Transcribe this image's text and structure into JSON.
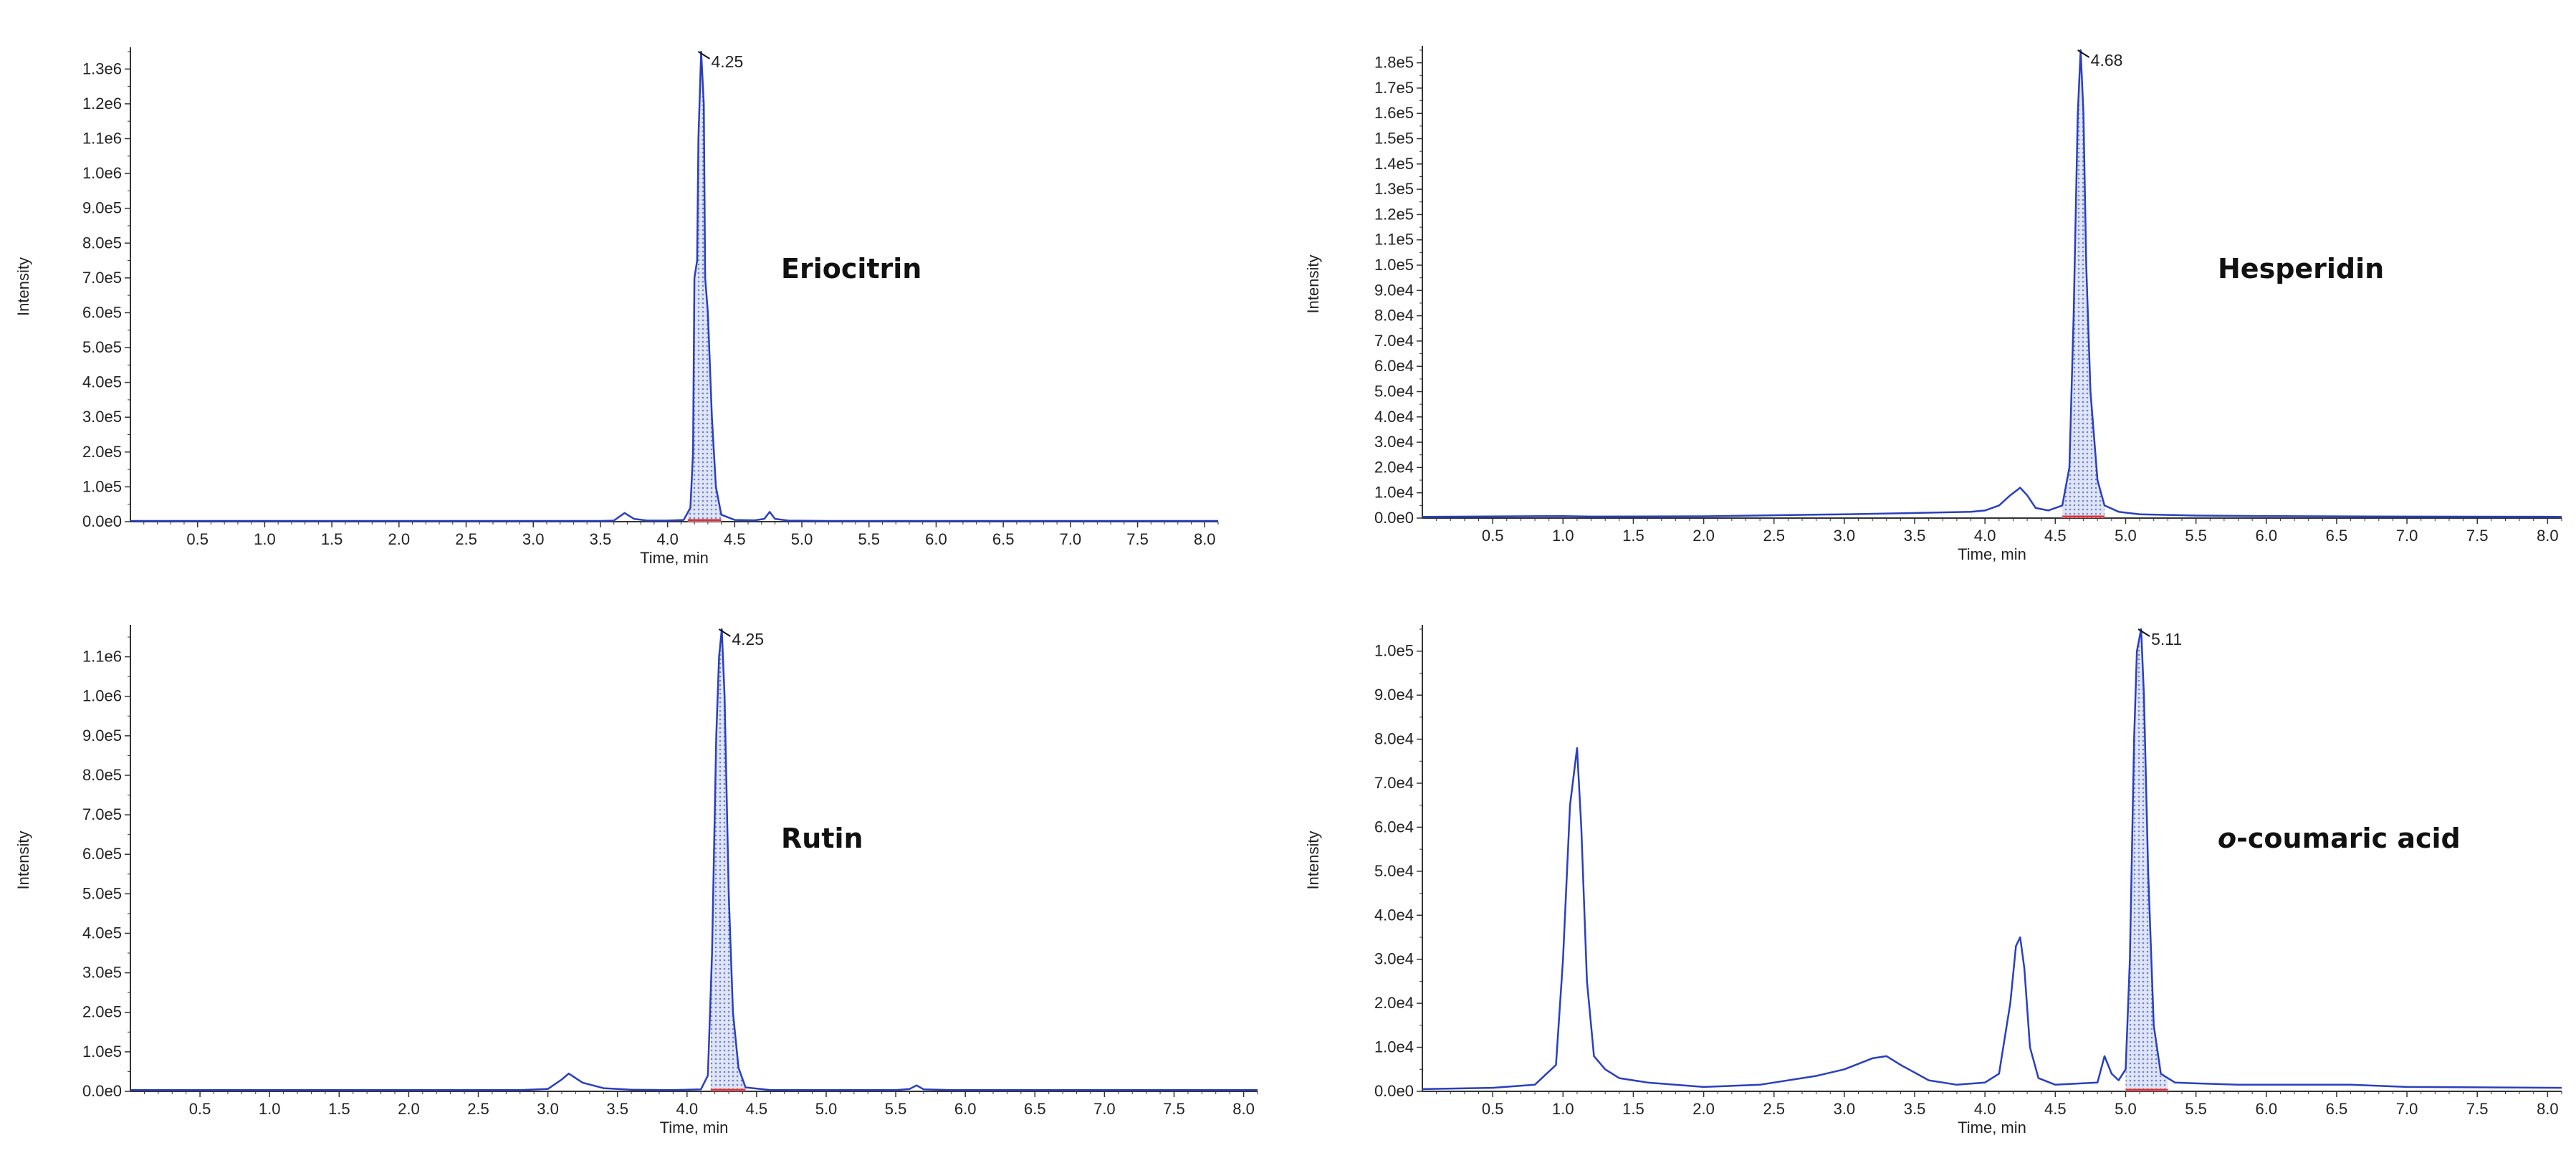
{
  "colors": {
    "trace": "#2a3fbf",
    "fill": "#6f83c9",
    "baseline": "#e03030",
    "axis": "#333333"
  },
  "chart_data": [
    {
      "type": "line",
      "title": "",
      "compound_main": "Eriocitrin",
      "compound_italic": "",
      "xlabel": "Time, min",
      "ylabel": "Intensity",
      "xlim": [
        0,
        8.1
      ],
      "ylim": [
        0,
        1350000.0
      ],
      "x_ticks": [
        0.5,
        1.0,
        1.5,
        2.0,
        2.5,
        3.0,
        3.5,
        4.0,
        4.5,
        5.0,
        5.5,
        6.0,
        6.5,
        7.0,
        7.5,
        8.0
      ],
      "x_tick_labels": [
        "0.5",
        "1.0",
        "1.5",
        "2.0",
        "2.5",
        "3.0",
        "3.5",
        "4.0",
        "4.5",
        "5.0",
        "5.5",
        "6.0",
        "6.5",
        "7.0",
        "7.5",
        "8.0"
      ],
      "y_ticks": [
        0,
        100000,
        200000,
        300000,
        400000,
        500000,
        600000,
        700000,
        800000,
        900000,
        1000000,
        1100000,
        1200000,
        1300000
      ],
      "y_tick_labels": [
        "0.0e0",
        "1.0e5",
        "2.0e5",
        "3.0e5",
        "4.0e5",
        "5.0e5",
        "6.0e5",
        "7.0e5",
        "8.0e5",
        "9.0e5",
        "1.0e6",
        "1.1e6",
        "1.2e6",
        "1.3e6"
      ],
      "peak_label": "4.25",
      "peak_rt": 4.25,
      "peak_height": 1350000,
      "integration": [
        4.15,
        4.4
      ],
      "series": [
        {
          "x": [
            0.0,
            3.5,
            3.6,
            3.68,
            3.75,
            3.85,
            4.0,
            4.12,
            4.17,
            4.19,
            4.2,
            4.22,
            4.23,
            4.25,
            4.27,
            4.28,
            4.3,
            4.33,
            4.36,
            4.4,
            4.5,
            4.65,
            4.72,
            4.76,
            4.8,
            4.9,
            5.2,
            8.1
          ],
          "y": [
            2000,
            2000,
            3000,
            25000,
            8000,
            3000,
            3000,
            5000,
            40000,
            200000,
            700000,
            750000,
            1100000,
            1350000,
            1200000,
            700000,
            600000,
            300000,
            100000,
            20000,
            5000,
            4000,
            8000,
            28000,
            8000,
            3000,
            2000,
            2000
          ]
        }
      ]
    },
    {
      "type": "line",
      "title": "",
      "compound_main": "Hesperidin",
      "compound_italic": "",
      "xlabel": "Time, min",
      "ylabel": "Intensity",
      "xlim": [
        0,
        8.1
      ],
      "ylim": [
        0,
        185000
      ],
      "x_ticks": [
        0.5,
        1.0,
        1.5,
        2.0,
        2.5,
        3.0,
        3.5,
        4.0,
        4.5,
        5.0,
        5.5,
        6.0,
        6.5,
        7.0,
        7.5,
        8.0
      ],
      "x_tick_labels": [
        "0.5",
        "1.0",
        "1.5",
        "2.0",
        "2.5",
        "3.0",
        "3.5",
        "4.0",
        "4.5",
        "5.0",
        "5.5",
        "6.0",
        "6.5",
        "7.0",
        "7.5",
        "8.0"
      ],
      "y_ticks": [
        0,
        10000,
        20000,
        30000,
        40000,
        50000,
        60000,
        70000,
        80000,
        90000,
        100000,
        110000,
        120000,
        130000,
        140000,
        150000,
        160000,
        170000,
        180000
      ],
      "y_tick_labels": [
        "0.0e0",
        "1.0e4",
        "2.0e4",
        "3.0e4",
        "4.0e4",
        "5.0e4",
        "6.0e4",
        "7.0e4",
        "8.0e4",
        "9.0e4",
        "1.0e5",
        "1.1e5",
        "1.2e5",
        "1.3e5",
        "1.4e5",
        "1.5e5",
        "1.6e5",
        "1.7e5",
        "1.8e5"
      ],
      "peak_label": "4.68",
      "peak_rt": 4.68,
      "peak_height": 185000,
      "integration": [
        4.55,
        4.85
      ],
      "series": [
        {
          "x": [
            0.0,
            1.0,
            1.2,
            2.0,
            3.0,
            3.5,
            3.9,
            4.0,
            4.1,
            4.18,
            4.25,
            4.3,
            4.36,
            4.45,
            4.55,
            4.6,
            4.63,
            4.66,
            4.68,
            4.7,
            4.72,
            4.75,
            4.8,
            4.85,
            4.95,
            5.1,
            5.5,
            6.0,
            7.0,
            8.1
          ],
          "y": [
            500,
            800,
            600,
            700,
            1500,
            2000,
            2500,
            3000,
            5000,
            9000,
            12000,
            9000,
            4000,
            3000,
            5000,
            20000,
            80000,
            160000,
            185000,
            160000,
            100000,
            50000,
            15000,
            5000,
            2500,
            1500,
            1000,
            800,
            600,
            500
          ]
        }
      ]
    },
    {
      "type": "line",
      "title": "",
      "compound_main": "Rutin",
      "compound_italic": "",
      "xlabel": "Time, min",
      "ylabel": "Intensity",
      "xlim": [
        0,
        8.1
      ],
      "ylim": [
        0,
        1170000.0
      ],
      "x_ticks": [
        0.5,
        1.0,
        1.5,
        2.0,
        2.5,
        3.0,
        3.5,
        4.0,
        4.5,
        5.0,
        5.5,
        6.0,
        6.5,
        7.0,
        7.5,
        8.0
      ],
      "x_tick_labels": [
        "0.5",
        "1.0",
        "1.5",
        "2.0",
        "2.5",
        "3.0",
        "3.5",
        "4.0",
        "4.5",
        "5.0",
        "5.5",
        "6.0",
        "6.5",
        "7.0",
        "7.5",
        "8.0"
      ],
      "y_ticks": [
        0,
        100000,
        200000,
        300000,
        400000,
        500000,
        600000,
        700000,
        800000,
        900000,
        1000000,
        1100000
      ],
      "y_tick_labels": [
        "0.0e0",
        "1.0e5",
        "2.0e5",
        "3.0e5",
        "4.0e5",
        "5.0e5",
        "6.0e5",
        "7.0e5",
        "8.0e5",
        "9.0e5",
        "1.0e6",
        "1.1e6"
      ],
      "peak_label": "4.25",
      "peak_rt": 4.25,
      "peak_height": 1170000,
      "integration": [
        4.17,
        4.42
      ],
      "series": [
        {
          "x": [
            0.0,
            2.8,
            3.0,
            3.1,
            3.15,
            3.25,
            3.4,
            3.6,
            3.9,
            4.1,
            4.15,
            4.18,
            4.21,
            4.23,
            4.25,
            4.27,
            4.3,
            4.33,
            4.37,
            4.42,
            4.6,
            5.5,
            5.6,
            5.65,
            5.7,
            5.9,
            8.1
          ],
          "y": [
            3000,
            3000,
            6000,
            30000,
            45000,
            22000,
            8000,
            4000,
            3000,
            5000,
            40000,
            350000,
            900000,
            1100000,
            1170000,
            1000000,
            500000,
            200000,
            60000,
            10000,
            3000,
            3000,
            6000,
            15000,
            5000,
            3000,
            3000
          ]
        }
      ]
    },
    {
      "type": "line",
      "title": "",
      "compound_main": "-coumaric acid",
      "compound_italic": "o",
      "xlabel": "Time, min",
      "ylabel": "Intensity",
      "xlim": [
        0,
        8.1
      ],
      "ylim": [
        0,
        105000
      ],
      "x_ticks": [
        0.5,
        1.0,
        1.5,
        2.0,
        2.5,
        3.0,
        3.5,
        4.0,
        4.5,
        5.0,
        5.5,
        6.0,
        6.5,
        7.0,
        7.5,
        8.0
      ],
      "x_tick_labels": [
        "0.5",
        "1.0",
        "1.5",
        "2.0",
        "2.5",
        "3.0",
        "3.5",
        "4.0",
        "4.5",
        "5.0",
        "5.5",
        "6.0",
        "6.5",
        "7.0",
        "7.5",
        "8.0"
      ],
      "y_ticks": [
        0,
        10000,
        20000,
        30000,
        40000,
        50000,
        60000,
        70000,
        80000,
        90000,
        100000
      ],
      "y_tick_labels": [
        "0.0e0",
        "1.0e4",
        "2.0e4",
        "3.0e4",
        "4.0e4",
        "5.0e4",
        "6.0e4",
        "7.0e4",
        "8.0e4",
        "9.0e4",
        "1.0e5"
      ],
      "peak_label": "5.11",
      "peak_rt": 5.11,
      "peak_height": 105000,
      "integration": [
        5.0,
        5.3
      ],
      "series": [
        {
          "x": [
            0.0,
            0.5,
            0.8,
            0.95,
            1.0,
            1.05,
            1.1,
            1.13,
            1.17,
            1.22,
            1.3,
            1.4,
            1.6,
            2.0,
            2.4,
            2.8,
            3.0,
            3.2,
            3.3,
            3.4,
            3.6,
            3.8,
            4.0,
            4.1,
            4.18,
            4.22,
            4.25,
            4.28,
            4.32,
            4.38,
            4.5,
            4.8,
            4.85,
            4.9,
            4.95,
            5.0,
            5.03,
            5.06,
            5.08,
            5.11,
            5.13,
            5.16,
            5.2,
            5.25,
            5.35,
            5.5,
            5.8,
            6.6,
            7.0,
            8.1
          ],
          "y": [
            500,
            800,
            1500,
            6000,
            30000,
            65000,
            78000,
            60000,
            25000,
            8000,
            5000,
            3000,
            2000,
            1000,
            1500,
            3500,
            5000,
            7500,
            8000,
            6000,
            2500,
            1500,
            2000,
            4000,
            20000,
            33000,
            35000,
            28000,
            10000,
            3000,
            1500,
            2000,
            8000,
            4000,
            2500,
            5000,
            30000,
            80000,
            100000,
            105000,
            90000,
            50000,
            15000,
            4000,
            2000,
            1800,
            1500,
            1500,
            1000,
            800
          ]
        }
      ]
    }
  ]
}
